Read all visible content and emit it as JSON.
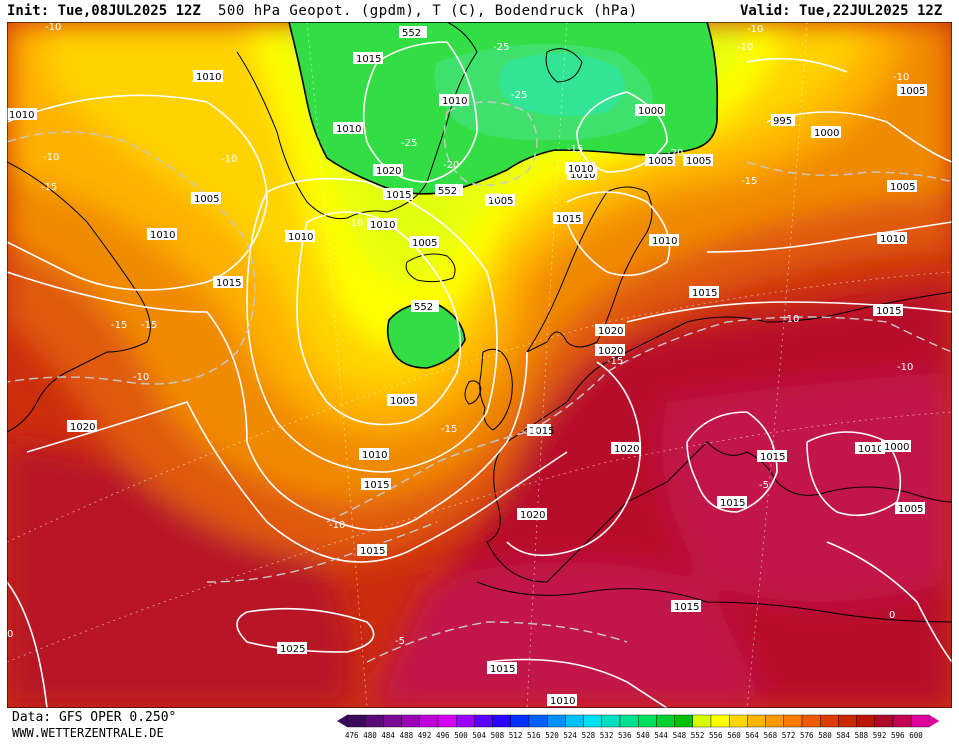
{
  "header": {
    "init": "Init: Tue,08JUL2025 12Z",
    "title": "500 hPa Geopot. (gpdm), T (C), Bodendruck (hPa)",
    "valid": "Valid: Tue,22JUL2025 12Z"
  },
  "footer": {
    "data_source": "Data: GFS OPER 0.250°",
    "site": "WWW.WETTERZENTRALE.DE"
  },
  "legend": {
    "levels": [
      "476",
      "480",
      "484",
      "488",
      "492",
      "496",
      "500",
      "504",
      "508",
      "512",
      "516",
      "520",
      "524",
      "528",
      "532",
      "536",
      "540",
      "544",
      "548",
      "552",
      "556",
      "560",
      "564",
      "568",
      "572",
      "576",
      "580",
      "584",
      "588",
      "592",
      "596",
      "600"
    ],
    "colors": [
      "#3c0a5a",
      "#5a0a78",
      "#7a0a96",
      "#9a00b4",
      "#c000d8",
      "#d400f0",
      "#9a00ff",
      "#5a00ff",
      "#2a00ff",
      "#0030ff",
      "#0060ff",
      "#0090ff",
      "#00c0ff",
      "#00e0f0",
      "#00e0c0",
      "#00e090",
      "#00e060",
      "#00d030",
      "#00c000",
      "#d4ff00",
      "#ffff00",
      "#ffd700",
      "#ffb400",
      "#ff9a00",
      "#ff7a00",
      "#ee5a00",
      "#dd3c00",
      "#cc2800",
      "#bb1400",
      "#aa0a28",
      "#c00050",
      "#e000a0"
    ]
  },
  "pressure_labels": [
    "552",
    "1015",
    "1010",
    "1010",
    "1005",
    "1010",
    "1000",
    "995",
    "1000",
    "1005",
    "1010",
    "1005",
    "1010",
    "1020",
    "1015",
    "552",
    "1005",
    "1015",
    "1005",
    "1010",
    "1010",
    "1010",
    "1015",
    "1015",
    "1015",
    "1005",
    "552",
    "1020",
    "1005",
    "1010",
    "1015",
    "1020",
    "1020",
    "1015",
    "1010",
    "1020",
    "1015",
    "1015",
    "1005",
    "1015",
    "1025",
    "1015",
    "1010",
    "1010",
    "1010",
    "1000",
    "1015",
    "1020",
    "1005",
    "1010"
  ],
  "temp_labels": [
    "-10",
    "-10",
    "-10",
    "-10",
    "-10",
    "-15",
    "-15",
    "-10",
    "-15",
    "-10",
    "-10",
    "-15",
    "-15",
    "-10",
    "-10",
    "-5",
    "0",
    "0",
    "-20",
    "-25",
    "-25",
    "-20",
    "-20",
    "-15",
    "-25",
    "-10",
    "-15",
    "-10",
    "-5"
  ]
}
